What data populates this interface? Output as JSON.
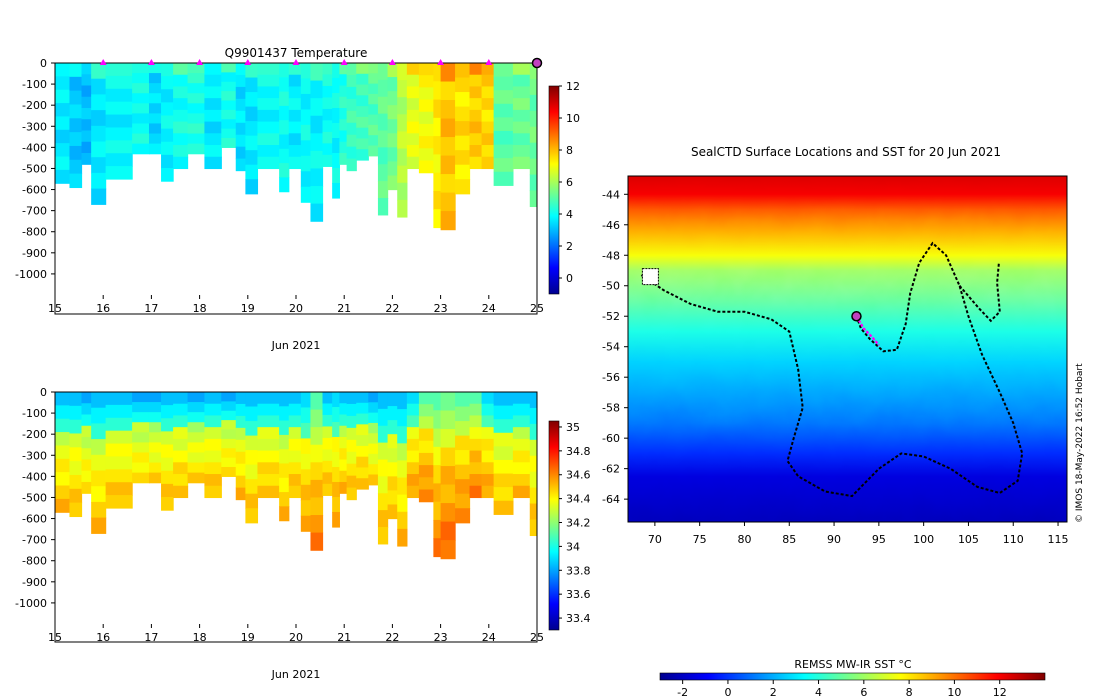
{
  "colors": {
    "jet": [
      "#00008f",
      "#0000ff",
      "#0080ff",
      "#00ffff",
      "#80ff80",
      "#ffff00",
      "#ff8000",
      "#ff0000",
      "#800000"
    ]
  },
  "chart_data": [
    {
      "id": "temperature",
      "type": "heatmap",
      "title": "Q9901437  Temperature",
      "xlabel": "Jun 2021",
      "x_ticks": [
        "15",
        "16",
        "17",
        "18",
        "19",
        "20",
        "21",
        "22",
        "23",
        "24",
        "25"
      ],
      "xlim": [
        15,
        25
      ],
      "ylim": [
        -1100,
        0
      ],
      "y_ticks": [
        "0",
        "-100",
        "-200",
        "-300",
        "-400",
        "-500",
        "-600",
        "-700",
        "-800",
        "-900",
        "-1000"
      ],
      "colorbar": {
        "min": -1,
        "max": 12,
        "ticks": [
          "0",
          "2",
          "4",
          "6",
          "8",
          "10",
          "12"
        ]
      },
      "surface_markers_day": [
        16,
        17,
        18,
        19,
        20,
        21,
        22,
        23,
        24
      ],
      "current_marker_day": 25,
      "profiles": [
        {
          "d": 15.0,
          "depth": 570,
          "v": 3.6
        },
        {
          "d": 15.3,
          "depth": 590,
          "v": 3.2
        },
        {
          "d": 15.55,
          "depth": 480,
          "v": 3.0
        },
        {
          "d": 15.75,
          "depth": 670,
          "v": 3.6
        },
        {
          "d": 16.05,
          "depth": 550,
          "v": 3.8
        },
        {
          "d": 16.6,
          "depth": 430,
          "v": 4.0
        },
        {
          "d": 16.95,
          "depth": 430,
          "v": 3.4
        },
        {
          "d": 17.2,
          "depth": 560,
          "v": 3.8
        },
        {
          "d": 17.45,
          "depth": 500,
          "v": 4.1
        },
        {
          "d": 17.75,
          "depth": 430,
          "v": 4.2
        },
        {
          "d": 18.1,
          "depth": 500,
          "v": 3.6
        },
        {
          "d": 18.45,
          "depth": 400,
          "v": 4.1
        },
        {
          "d": 18.75,
          "depth": 510,
          "v": 3.5
        },
        {
          "d": 18.95,
          "depth": 620,
          "v": 3.6
        },
        {
          "d": 19.2,
          "depth": 500,
          "v": 3.9
        },
        {
          "d": 19.65,
          "depth": 610,
          "v": 4.0
        },
        {
          "d": 19.85,
          "depth": 500,
          "v": 3.7
        },
        {
          "d": 20.1,
          "depth": 660,
          "v": 3.9
        },
        {
          "d": 20.3,
          "depth": 750,
          "v": 3.8
        },
        {
          "d": 20.55,
          "depth": 490,
          "v": 4.0
        },
        {
          "d": 20.75,
          "depth": 640,
          "v": 3.9
        },
        {
          "d": 20.9,
          "depth": 480,
          "v": 4.3
        },
        {
          "d": 21.05,
          "depth": 510,
          "v": 4.6
        },
        {
          "d": 21.25,
          "depth": 460,
          "v": 4.7
        },
        {
          "d": 21.5,
          "depth": 440,
          "v": 4.9
        },
        {
          "d": 21.7,
          "depth": 720,
          "v": 5.0
        },
        {
          "d": 21.9,
          "depth": 600,
          "v": 5.3
        },
        {
          "d": 22.1,
          "depth": 730,
          "v": 6.2
        },
        {
          "d": 22.3,
          "depth": 500,
          "v": 6.8
        },
        {
          "d": 22.55,
          "depth": 520,
          "v": 7.0
        },
        {
          "d": 22.85,
          "depth": 780,
          "v": 7.3
        },
        {
          "d": 23.0,
          "depth": 790,
          "v": 7.9
        },
        {
          "d": 23.3,
          "depth": 620,
          "v": 7.5
        },
        {
          "d": 23.6,
          "depth": 500,
          "v": 7.8
        },
        {
          "d": 23.85,
          "depth": 500,
          "v": 7.6
        },
        {
          "d": 24.1,
          "depth": 580,
          "v": 5.0
        },
        {
          "d": 24.5,
          "depth": 500,
          "v": 5.2
        },
        {
          "d": 24.85,
          "depth": 680,
          "v": 5.2
        },
        {
          "d": 25.0,
          "depth": 0,
          "v": 5.0
        }
      ]
    },
    {
      "id": "salinity",
      "type": "heatmap",
      "title": "",
      "xlabel": "Jun 2021",
      "x_ticks": [
        "15",
        "16",
        "17",
        "18",
        "19",
        "20",
        "21",
        "22",
        "23",
        "24",
        "25"
      ],
      "xlim": [
        15,
        25
      ],
      "ylim": [
        -1100,
        0
      ],
      "y_ticks": [
        "0",
        "-100",
        "-200",
        "-300",
        "-400",
        "-500",
        "-600",
        "-700",
        "-800",
        "-900",
        "-1000"
      ],
      "colorbar": {
        "min": 33.3,
        "max": 35.05,
        "ticks": [
          "33.4",
          "33.6",
          "33.8",
          "34",
          "34.2",
          "34.4",
          "34.6",
          "34.8",
          "35"
        ]
      },
      "profiles": [
        {
          "d": 15.0,
          "depth": 570,
          "v": 34.2
        },
        {
          "d": 15.3,
          "depth": 590,
          "v": 34.2
        },
        {
          "d": 15.55,
          "depth": 480,
          "v": 34.15
        },
        {
          "d": 15.75,
          "depth": 670,
          "v": 34.2
        },
        {
          "d": 16.05,
          "depth": 550,
          "v": 34.2
        },
        {
          "d": 16.6,
          "depth": 430,
          "v": 34.15
        },
        {
          "d": 16.95,
          "depth": 430,
          "v": 34.15
        },
        {
          "d": 17.2,
          "depth": 560,
          "v": 34.2
        },
        {
          "d": 17.45,
          "depth": 500,
          "v": 34.2
        },
        {
          "d": 17.75,
          "depth": 430,
          "v": 34.15
        },
        {
          "d": 18.1,
          "depth": 500,
          "v": 34.2
        },
        {
          "d": 18.45,
          "depth": 400,
          "v": 34.15
        },
        {
          "d": 18.75,
          "depth": 510,
          "v": 34.2
        },
        {
          "d": 18.95,
          "depth": 620,
          "v": 34.2
        },
        {
          "d": 19.2,
          "depth": 500,
          "v": 34.2
        },
        {
          "d": 19.65,
          "depth": 610,
          "v": 34.2
        },
        {
          "d": 19.85,
          "depth": 500,
          "v": 34.2
        },
        {
          "d": 20.1,
          "depth": 660,
          "v": 34.25
        },
        {
          "d": 20.3,
          "depth": 750,
          "v": 34.3
        },
        {
          "d": 20.55,
          "depth": 490,
          "v": 34.2
        },
        {
          "d": 20.75,
          "depth": 640,
          "v": 34.25
        },
        {
          "d": 20.9,
          "depth": 480,
          "v": 34.2
        },
        {
          "d": 21.05,
          "depth": 510,
          "v": 34.2
        },
        {
          "d": 21.25,
          "depth": 460,
          "v": 34.2
        },
        {
          "d": 21.5,
          "depth": 440,
          "v": 34.15
        },
        {
          "d": 21.7,
          "depth": 720,
          "v": 34.2
        },
        {
          "d": 21.9,
          "depth": 600,
          "v": 34.2
        },
        {
          "d": 22.1,
          "depth": 730,
          "v": 34.2
        },
        {
          "d": 22.3,
          "depth": 500,
          "v": 34.25
        },
        {
          "d": 22.55,
          "depth": 520,
          "v": 34.3
        },
        {
          "d": 22.85,
          "depth": 780,
          "v": 34.3
        },
        {
          "d": 23.0,
          "depth": 790,
          "v": 34.35
        },
        {
          "d": 23.3,
          "depth": 620,
          "v": 34.3
        },
        {
          "d": 23.6,
          "depth": 500,
          "v": 34.3
        },
        {
          "d": 23.85,
          "depth": 500,
          "v": 34.25
        },
        {
          "d": 24.1,
          "depth": 580,
          "v": 34.2
        },
        {
          "d": 24.5,
          "depth": 500,
          "v": 34.2
        },
        {
          "d": 24.85,
          "depth": 680,
          "v": 34.2
        },
        {
          "d": 25.0,
          "depth": 0,
          "v": 34.2
        }
      ]
    },
    {
      "id": "sst-map",
      "type": "heatmap",
      "title": "SealCTD Surface Locations and SST for 20 Jun 2021",
      "xlim": [
        67,
        116
      ],
      "ylim": [
        -65.5,
        -42.8
      ],
      "x_ticks": [
        70,
        75,
        80,
        85,
        90,
        95,
        100,
        105,
        110,
        115
      ],
      "y_ticks": [
        -44,
        -46,
        -48,
        -50,
        -52,
        -54,
        -56,
        -58,
        -60,
        -62,
        -64
      ],
      "colorbar": {
        "label": "REMSS MW-IR SST °C",
        "min": -3,
        "max": 14,
        "ticks": [
          "-2",
          "0",
          "2",
          "4",
          "6",
          "8",
          "10",
          "12"
        ]
      },
      "sst_profile": [
        {
          "lat": -42.8,
          "sst": 12.5
        },
        {
          "lat": -44.0,
          "sst": 12.0
        },
        {
          "lat": -45.0,
          "sst": 10.5
        },
        {
          "lat": -46.5,
          "sst": 9.0
        },
        {
          "lat": -48.0,
          "sst": 7.5
        },
        {
          "lat": -49.0,
          "sst": 6.0
        },
        {
          "lat": -51.0,
          "sst": 5.0
        },
        {
          "lat": -53.0,
          "sst": 3.8
        },
        {
          "lat": -55.0,
          "sst": 2.6
        },
        {
          "lat": -57.0,
          "sst": 1.8
        },
        {
          "lat": -59.0,
          "sst": 1.0
        },
        {
          "lat": -61.0,
          "sst": -0.2
        },
        {
          "lat": -62.5,
          "sst": -1.5
        },
        {
          "lat": -65.5,
          "sst": -2.2
        }
      ],
      "track": [
        [
          68.5,
          -49.3
        ],
        [
          71,
          -50.3
        ],
        [
          74,
          -51.2
        ],
        [
          77,
          -51.7
        ],
        [
          80,
          -51.7
        ],
        [
          83,
          -52.2
        ],
        [
          85,
          -53.0
        ],
        [
          86,
          -55.5
        ],
        [
          86.5,
          -58
        ],
        [
          85.5,
          -60
        ],
        [
          84.8,
          -61.5
        ],
        [
          86,
          -62.5
        ],
        [
          89,
          -63.5
        ],
        [
          92,
          -63.8
        ],
        [
          95,
          -62.0
        ],
        [
          97.5,
          -61.0
        ],
        [
          100,
          -61.2
        ],
        [
          103,
          -62.0
        ],
        [
          106,
          -63.2
        ],
        [
          108.5,
          -63.6
        ],
        [
          110.5,
          -62.8
        ],
        [
          111,
          -61
        ],
        [
          110,
          -59
        ],
        [
          108.5,
          -57
        ],
        [
          106.5,
          -54.5
        ],
        [
          105,
          -52
        ],
        [
          104,
          -50
        ],
        [
          102.5,
          -48
        ],
        [
          101,
          -47.2
        ],
        [
          99.5,
          -48.5
        ],
        [
          98.5,
          -50.5
        ],
        [
          98,
          -52.5
        ],
        [
          97,
          -54.2
        ],
        [
          95.5,
          -54.3
        ],
        [
          94,
          -53.5
        ],
        [
          93,
          -52.8
        ],
        [
          92.5,
          -52
        ]
      ],
      "track_branch": [
        [
          104,
          -50
        ],
        [
          106.2,
          -51.5
        ],
        [
          107.5,
          -52.3
        ],
        [
          108.5,
          -51.7
        ],
        [
          108.2,
          -49.8
        ],
        [
          108.4,
          -48.5
        ]
      ],
      "recent_track": [
        [
          92.5,
          -52
        ],
        [
          93.3,
          -52.8
        ],
        [
          94.3,
          -53.4
        ],
        [
          95,
          -53.9
        ]
      ],
      "current_position": [
        92.5,
        -52
      ],
      "island_patch": [
        69.5,
        -49.4
      ]
    }
  ],
  "credit": "© IMOS 18-May-2022 16:52 Hobart"
}
